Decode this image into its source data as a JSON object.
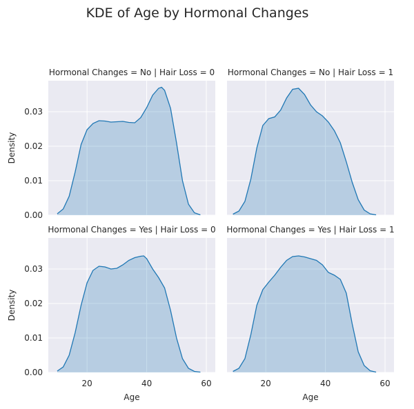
{
  "chart_data": {
    "type": "area",
    "title": "KDE of Age by Hormonal Changes",
    "xlabel": "Age",
    "ylabel": "Density",
    "xlim": [
      7,
      63
    ],
    "ylim": [
      0,
      0.039
    ],
    "xticks": [
      20,
      40,
      60
    ],
    "yticks": [
      0.0,
      0.01,
      0.02,
      0.03
    ],
    "ytick_labels": [
      "0.00",
      "0.01",
      "0.02",
      "0.03"
    ],
    "grid": true,
    "panels": [
      {
        "title": "Hormonal Changes = No | Hair Loss = 0",
        "row": 0,
        "col": 0,
        "x": [
          10,
          12,
          14,
          16,
          18,
          20,
          22,
          24,
          26,
          28,
          30,
          32,
          34,
          36,
          38,
          40,
          42,
          44,
          45,
          46,
          48,
          50,
          52,
          54,
          56,
          58
        ],
        "y": [
          0.0004,
          0.0018,
          0.0055,
          0.0125,
          0.0205,
          0.0248,
          0.0266,
          0.0274,
          0.0273,
          0.027,
          0.0271,
          0.0272,
          0.0269,
          0.0268,
          0.0283,
          0.0312,
          0.0348,
          0.0368,
          0.0371,
          0.0362,
          0.031,
          0.021,
          0.01,
          0.0032,
          0.0007,
          0.0001
        ]
      },
      {
        "title": "Hormonal Changes = No | Hair Loss = 1",
        "row": 0,
        "col": 1,
        "x": [
          9,
          11,
          13,
          15,
          17,
          19,
          21,
          23,
          25,
          27,
          29,
          31,
          33,
          35,
          37,
          39,
          41,
          43,
          45,
          47,
          49,
          51,
          53,
          55,
          57
        ],
        "y": [
          0.0003,
          0.0012,
          0.004,
          0.0105,
          0.0195,
          0.026,
          0.028,
          0.0285,
          0.0305,
          0.034,
          0.0365,
          0.0368,
          0.035,
          0.032,
          0.03,
          0.0288,
          0.027,
          0.0245,
          0.021,
          0.0155,
          0.0095,
          0.0045,
          0.0015,
          0.0004,
          0.0001
        ]
      },
      {
        "title": "Hormonal Changes = Yes | Hair Loss = 0",
        "row": 1,
        "col": 0,
        "x": [
          10,
          12,
          14,
          16,
          18,
          20,
          22,
          24,
          26,
          28,
          30,
          32,
          34,
          36,
          38,
          39,
          40,
          42,
          44,
          46,
          48,
          50,
          52,
          54,
          56,
          58
        ],
        "y": [
          0.0004,
          0.0016,
          0.005,
          0.0115,
          0.0195,
          0.026,
          0.0296,
          0.0308,
          0.0306,
          0.03,
          0.0302,
          0.0312,
          0.0325,
          0.0333,
          0.0337,
          0.0338,
          0.033,
          0.03,
          0.0275,
          0.0245,
          0.018,
          0.01,
          0.004,
          0.0012,
          0.0003,
          0.0001
        ]
      },
      {
        "title": "Hormonal Changes = Yes | Hair Loss = 1",
        "row": 1,
        "col": 1,
        "x": [
          9,
          11,
          13,
          15,
          17,
          19,
          21,
          23,
          25,
          27,
          29,
          31,
          33,
          35,
          37,
          39,
          41,
          43,
          45,
          47,
          49,
          51,
          53,
          55,
          57
        ],
        "y": [
          0.0003,
          0.0012,
          0.004,
          0.011,
          0.0195,
          0.024,
          0.0262,
          0.0282,
          0.0305,
          0.0325,
          0.0336,
          0.0338,
          0.0335,
          0.033,
          0.0325,
          0.0312,
          0.029,
          0.0282,
          0.027,
          0.023,
          0.014,
          0.006,
          0.002,
          0.0005,
          0.0001
        ]
      }
    ]
  },
  "colors": {
    "line": "#1f77b4",
    "fill": "#1f77b4",
    "panel_background": "#eaeaf2",
    "grid": "#ffffff"
  }
}
